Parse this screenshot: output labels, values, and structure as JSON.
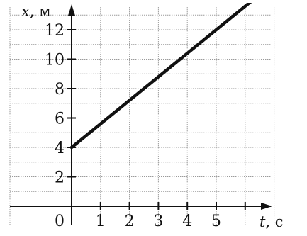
{
  "chart_data": {
    "type": "line",
    "title": "",
    "xlabel": {
      "var": "t",
      "unit": ", с"
    },
    "ylabel": {
      "var": "x",
      "unit": ", м"
    },
    "xlim": [
      0,
      6.5
    ],
    "ylim": [
      0,
      14
    ],
    "x_ticks": [
      1,
      2,
      3,
      4,
      5
    ],
    "y_ticks": [
      2,
      4,
      6,
      8,
      10,
      12
    ],
    "origin_label": "0",
    "grid": true,
    "series": [
      {
        "x": [
          0,
          6.5
        ],
        "y": [
          4,
          14.4
        ]
      }
    ],
    "colors": {
      "line": "#111111",
      "axis": "#111111",
      "grid": "#9a9a9a"
    }
  }
}
